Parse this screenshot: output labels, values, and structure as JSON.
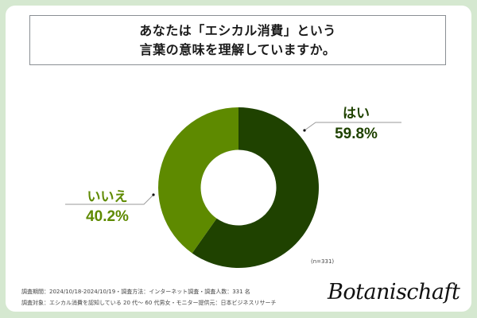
{
  "title": {
    "line1": "あなたは「エシカル消費」という",
    "line2": "言葉の意味を理解していますか。"
  },
  "chart_data": {
    "type": "pie",
    "variant": "donut",
    "title": "あなたは「エシカル消費」という言葉の意味を理解していますか。",
    "categories": [
      "はい",
      "いいえ"
    ],
    "values": [
      59.8,
      40.2
    ],
    "unit": "%",
    "colors": [
      "#1f4200",
      "#5e8a00"
    ],
    "start_angle_deg": 0,
    "direction": "clockwise",
    "sample_note": "(n=331)",
    "legend": "none (direct labels)"
  },
  "labels": {
    "yes": {
      "category": "はい",
      "value": "59.8%",
      "color": "#1f4200"
    },
    "no": {
      "category": "いいえ",
      "value": "40.2%",
      "color": "#5e8a00"
    }
  },
  "sample_note": "(n=331)",
  "footer": {
    "line1": "調査期間：2024/10/18-2024/10/19・調査方法：インターネット調査・調査人数：331 名",
    "line2": "調査対象：エシカル消費を認知している 20 代～ 60 代男女・モニター提供元：日本ビジネスリサーチ"
  },
  "logo": {
    "text": "Botanischaft"
  },
  "colors": {
    "background": "#d5e8d0",
    "card": "#ffffff",
    "yes": "#1f4200",
    "no": "#5e8a00"
  }
}
